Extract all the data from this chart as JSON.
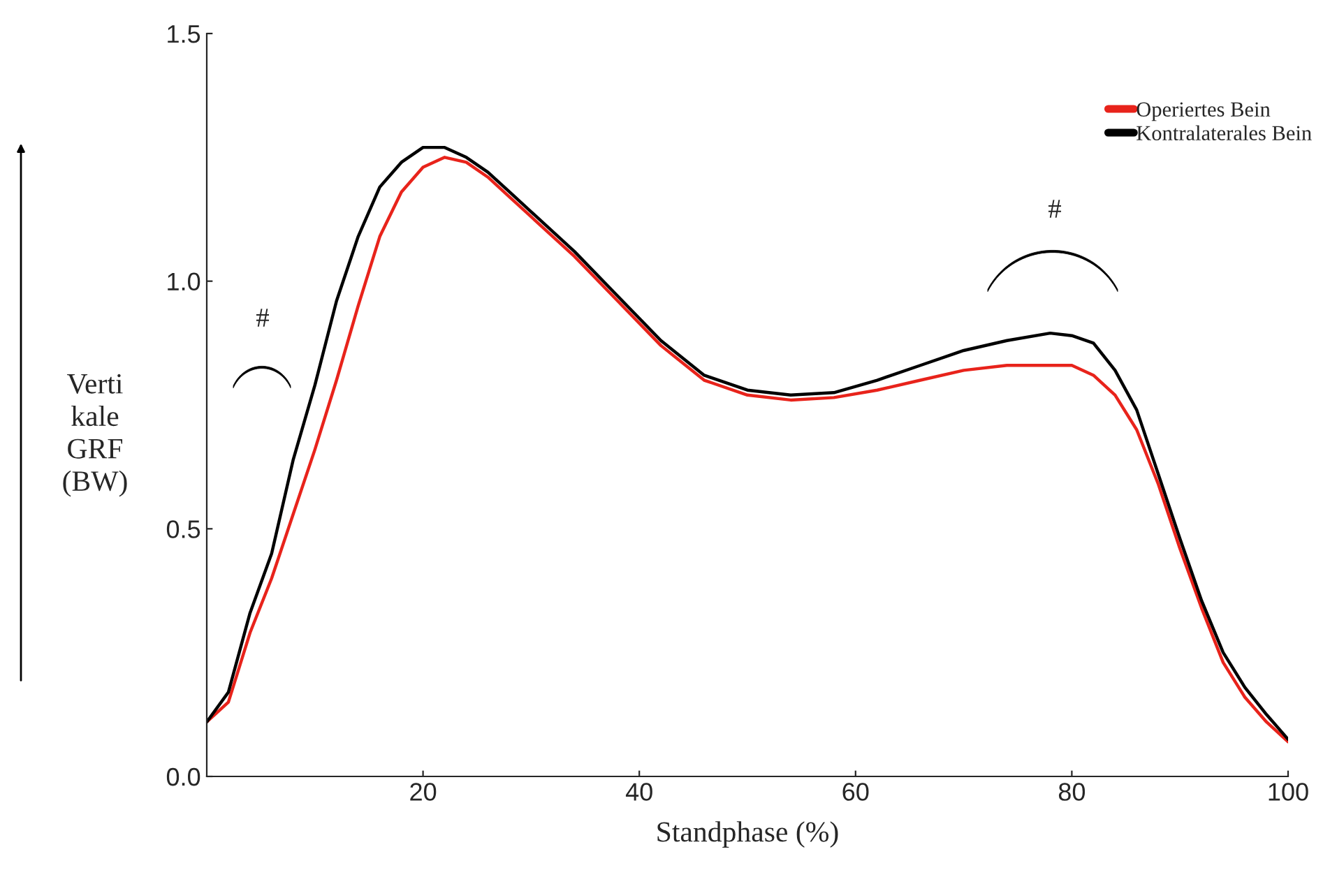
{
  "chart_data": {
    "type": "line",
    "xlabel": "Standphase (%)",
    "ylabel": "Verti\nkale\nGRF\n(BW)",
    "x": [
      0,
      2,
      4,
      6,
      8,
      10,
      12,
      14,
      16,
      18,
      20,
      22,
      24,
      26,
      28,
      30,
      34,
      38,
      42,
      46,
      50,
      54,
      58,
      62,
      66,
      70,
      74,
      78,
      80,
      82,
      84,
      86,
      88,
      90,
      92,
      94,
      96,
      98,
      100
    ],
    "series": [
      {
        "name": "Operiertes Bein",
        "color": "#e8231b",
        "values": [
          0.11,
          0.15,
          0.29,
          0.4,
          0.53,
          0.66,
          0.8,
          0.95,
          1.09,
          1.18,
          1.23,
          1.25,
          1.24,
          1.21,
          1.17,
          1.13,
          1.05,
          0.96,
          0.87,
          0.8,
          0.77,
          0.76,
          0.765,
          0.78,
          0.8,
          0.82,
          0.83,
          0.83,
          0.83,
          0.81,
          0.77,
          0.7,
          0.59,
          0.46,
          0.34,
          0.23,
          0.16,
          0.11,
          0.07
        ]
      },
      {
        "name": "Kontralaterales Bein",
        "color": "#000000",
        "values": [
          0.11,
          0.17,
          0.33,
          0.45,
          0.64,
          0.79,
          0.96,
          1.09,
          1.19,
          1.24,
          1.27,
          1.27,
          1.25,
          1.22,
          1.18,
          1.14,
          1.06,
          0.97,
          0.88,
          0.81,
          0.78,
          0.77,
          0.775,
          0.8,
          0.83,
          0.86,
          0.88,
          0.895,
          0.89,
          0.875,
          0.82,
          0.74,
          0.61,
          0.48,
          0.355,
          0.25,
          0.18,
          0.125,
          0.075
        ]
      }
    ],
    "annotations": [
      "#",
      "#"
    ],
    "xlim": [
      0,
      100
    ],
    "xticks": [
      20,
      40,
      60,
      80,
      100
    ],
    "ylim": [
      0,
      1.5
    ],
    "yticks": [
      {
        "value": 0,
        "label": "0.0"
      },
      {
        "value": 0.5,
        "label": "0.5"
      },
      {
        "value": 1.0,
        "label": "1.0"
      },
      {
        "value": 1.5,
        "label": "1.5"
      }
    ],
    "legend": "top right",
    "grid": false,
    "line_style": "solid",
    "marker": "none"
  }
}
